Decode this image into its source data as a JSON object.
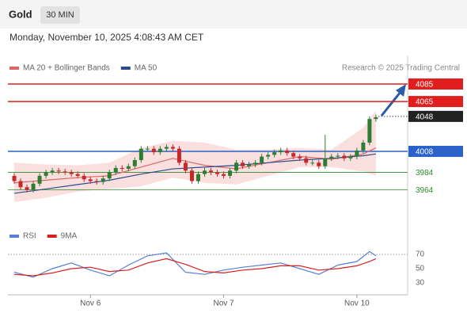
{
  "header": {
    "symbol": "Gold",
    "interval": "30 MIN",
    "timestamp": "Monday, November 10, 2025 4:08:43 AM CET",
    "source": "Research © 2025 Trading Central"
  },
  "chart_data": [
    {
      "type": "candlestick",
      "xlim": [
        -1,
        62
      ],
      "ylim": [
        3940,
        4095
      ],
      "up_color": "#2e7d32",
      "down_color": "#c62828",
      "open": [
        3980,
        3974,
        3967,
        3964,
        3971,
        3980,
        3984,
        3986,
        3985,
        3984,
        3982,
        3980,
        3976,
        3974,
        3973,
        3977,
        3984,
        3989,
        3988,
        3991,
        3998,
        4011,
        4011,
        4007,
        4011,
        4013,
        4011,
        3995,
        3986,
        3974,
        3982,
        3986,
        3984,
        3982,
        3980,
        3986,
        3995,
        3991,
        3993,
        3995,
        4002,
        4004,
        4007,
        4009,
        4006,
        4002,
        4000,
        3995,
        3995,
        3991,
        4000,
        4002,
        4003,
        4000,
        4002,
        4009,
        4018,
        4045
      ],
      "high": [
        3983,
        3977,
        3970,
        3974,
        3983,
        3987,
        3989,
        3989,
        3988,
        3987,
        3985,
        3983,
        3979,
        3977,
        3980,
        3987,
        3992,
        3992,
        3994,
        4001,
        4014,
        4014,
        4014,
        4014,
        4016,
        4016,
        4014,
        3998,
        3989,
        3985,
        3989,
        3989,
        3987,
        3985,
        3989,
        3998,
        3998,
        3996,
        3998,
        4005,
        4007,
        4010,
        4012,
        4012,
        4009,
        4005,
        4003,
        3998,
        3998,
        4027,
        4005,
        4006,
        4006,
        4005,
        4012,
        4021,
        4048,
        4050
      ],
      "low": [
        3971,
        3964,
        3961,
        3961,
        3968,
        3977,
        3981,
        3982,
        3981,
        3979,
        3977,
        3973,
        3971,
        3970,
        3970,
        3974,
        3981,
        3985,
        3985,
        3988,
        3995,
        4008,
        4004,
        4004,
        4008,
        4008,
        3992,
        3983,
        3971,
        3971,
        3979,
        3981,
        3979,
        3977,
        3977,
        3983,
        3988,
        3988,
        3990,
        3992,
        3999,
        4001,
        4004,
        4003,
        3999,
        3997,
        3992,
        3992,
        3988,
        3988,
        3997,
        3999,
        3997,
        3997,
        3999,
        4006,
        4015,
        4042
      ],
      "close": [
        3974,
        3967,
        3964,
        3971,
        3980,
        3984,
        3986,
        3985,
        3984,
        3982,
        3980,
        3976,
        3974,
        3973,
        3977,
        3984,
        3989,
        3988,
        3991,
        3998,
        4011,
        4011,
        4007,
        4011,
        4013,
        4011,
        3995,
        3986,
        3974,
        3982,
        3986,
        3984,
        3982,
        3980,
        3986,
        3995,
        3991,
        3993,
        3995,
        4002,
        4004,
        4007,
        4009,
        4006,
        4002,
        4000,
        3995,
        3995,
        3991,
        4000,
        4002,
        4003,
        4000,
        4002,
        4009,
        4018,
        4045,
        4047
      ],
      "series": [
        {
          "name": "MA 20 + Bollinger Bands",
          "color": "#e06666",
          "band_color": "#f6c9c9",
          "x": [
            0,
            5,
            10,
            15,
            20,
            25,
            30,
            35,
            40,
            45,
            50,
            55,
            57
          ],
          "values": [
            3972,
            3975,
            3978,
            3980,
            3990,
            4000,
            3992,
            3988,
            3995,
            4002,
            3999,
            4005,
            4012
          ],
          "upper": [
            3995,
            3993,
            3992,
            3995,
            4012,
            4020,
            4018,
            4010,
            4010,
            4012,
            4010,
            4035,
            4055
          ],
          "lower": [
            3950,
            3955,
            3962,
            3965,
            3968,
            3978,
            3972,
            3970,
            3980,
            3990,
            3990,
            3985,
            3980
          ]
        },
        {
          "name": "MA 50",
          "color": "#2c4a8c",
          "x": [
            0,
            5,
            10,
            15,
            20,
            25,
            30,
            35,
            40,
            45,
            50,
            55,
            57
          ],
          "values": [
            3960,
            3965,
            3970,
            3975,
            3982,
            3988,
            3990,
            3992,
            3995,
            3998,
            4000,
            4003,
            4005
          ]
        }
      ],
      "levels": [
        {
          "value": 4085,
          "color": "#e01e1e",
          "line_style": "solid",
          "label_style": "box"
        },
        {
          "value": 4065,
          "color": "#e01e1e",
          "line_style": "solid",
          "label_style": "box"
        },
        {
          "value": 4048,
          "color": "#222222",
          "line_style": "dotted",
          "label_style": "box"
        },
        {
          "value": 4008,
          "color": "#2a62c9",
          "line_style": "solid",
          "label_style": "box"
        },
        {
          "value": 3984,
          "color": "#2e8b2e",
          "line_style": "solid",
          "label_style": "plain"
        },
        {
          "value": 3964,
          "color": "#2e8b2e",
          "line_style": "solid",
          "label_style": "plain"
        }
      ]
    },
    {
      "type": "line",
      "xlim": [
        -1,
        62
      ],
      "ylim": [
        20,
        80
      ],
      "xticks": [
        {
          "value": 12,
          "label": "Nov 6"
        },
        {
          "value": 33,
          "label": "Nov 7"
        },
        {
          "value": 54,
          "label": "Nov 10"
        }
      ],
      "yticks": [
        30,
        50,
        70
      ],
      "ref_lines": [
        70
      ],
      "series": [
        {
          "name": "RSI",
          "color": "#5b7fd6",
          "x": [
            0,
            3,
            6,
            9,
            12,
            15,
            18,
            21,
            24,
            27,
            30,
            33,
            36,
            39,
            42,
            45,
            48,
            51,
            54,
            56,
            57
          ],
          "values": [
            45,
            38,
            50,
            58,
            48,
            40,
            55,
            68,
            72,
            45,
            42,
            48,
            52,
            55,
            58,
            50,
            42,
            55,
            60,
            74,
            68
          ]
        },
        {
          "name": "9MA",
          "color": "#d62020",
          "x": [
            0,
            3,
            6,
            9,
            12,
            15,
            18,
            21,
            24,
            27,
            30,
            33,
            36,
            39,
            42,
            45,
            48,
            51,
            54,
            56,
            57
          ],
          "values": [
            42,
            40,
            44,
            50,
            52,
            46,
            48,
            58,
            64,
            56,
            46,
            44,
            48,
            50,
            54,
            54,
            48,
            50,
            54,
            60,
            64
          ]
        }
      ]
    }
  ]
}
